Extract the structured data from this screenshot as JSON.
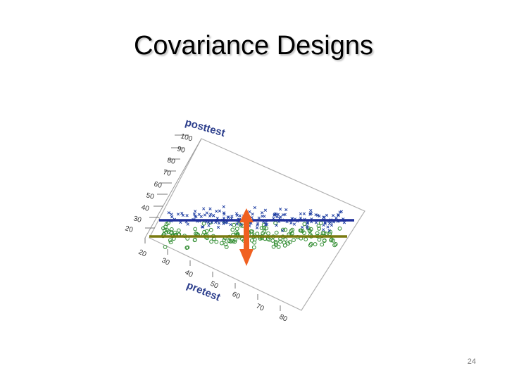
{
  "slide": {
    "title": "Covariance Designs",
    "page_number": "24"
  },
  "figure": {
    "y_axis_title": "posttest",
    "x_axis_title": "pretest",
    "y_ticks": [
      "100",
      "90",
      "80",
      "70",
      "60",
      "50",
      "40",
      "30",
      "20"
    ],
    "x_ticks": [
      "20",
      "30",
      "40",
      "50",
      "60",
      "70",
      "80"
    ],
    "colors": {
      "treatment_line": "#1f2f9a",
      "control_line": "#7a7a10",
      "treatment_points": "#1a3aa0",
      "control_points": "#2e8b2e",
      "effect_arrow": "#f06020",
      "axis_title": "#2c3e8c"
    }
  }
}
